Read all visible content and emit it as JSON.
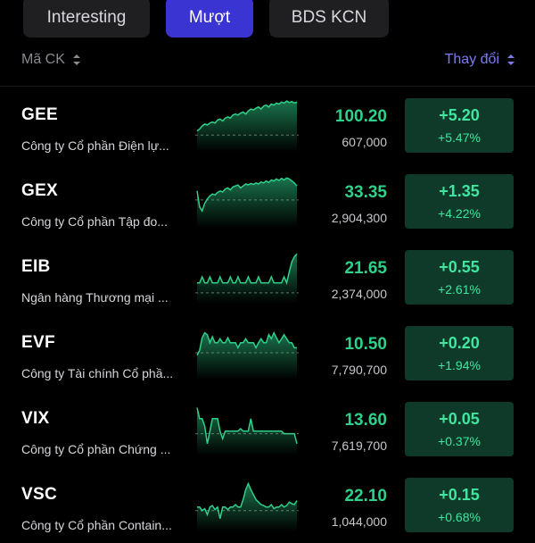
{
  "tabs": [
    {
      "label": "Interesting",
      "active": false
    },
    {
      "label": "Mượt",
      "active": true
    },
    {
      "label": "BDS KCN",
      "active": false
    }
  ],
  "header": {
    "left_label": "Mã CK",
    "right_label": "Thay đổi",
    "sort_icon": "sort-updown-icon"
  },
  "colors": {
    "background": "#000000",
    "active_tab": "#3a34d2",
    "gain_text": "#2fd08a",
    "gain_box": "#0f3a2a",
    "accent_link": "#7c7cf0"
  },
  "stocks": [
    {
      "ticker": "GEE",
      "name": "Công ty Cổ phần Điện lự...",
      "price": "100.20",
      "volume": "607,000",
      "change": "+5.20",
      "change_pct": "+5.47%",
      "spark": [
        0.62,
        0.58,
        0.52,
        0.48,
        0.5,
        0.46,
        0.44,
        0.46,
        0.4,
        0.38,
        0.42,
        0.36,
        0.34,
        0.36,
        0.3,
        0.28,
        0.3,
        0.26,
        0.24,
        0.28,
        0.22,
        0.18,
        0.2,
        0.16,
        0.14,
        0.18,
        0.12,
        0.1,
        0.14,
        0.08,
        0.1,
        0.06,
        0.08,
        0.04,
        0.06,
        0.02,
        0.05,
        0.03,
        0.06,
        0.04
      ],
      "ref": 0.7
    },
    {
      "ticker": "GEX",
      "name": "Công ty Cổ phần Tập đo...",
      "price": "33.35",
      "volume": "2,904,300",
      "change": "+1.35",
      "change_pct": "+4.22%",
      "spark": [
        0.3,
        0.62,
        0.7,
        0.55,
        0.46,
        0.4,
        0.36,
        0.38,
        0.33,
        0.3,
        0.32,
        0.26,
        0.24,
        0.28,
        0.22,
        0.2,
        0.18,
        0.24,
        0.2,
        0.16,
        0.18,
        0.15,
        0.17,
        0.14,
        0.16,
        0.12,
        0.14,
        0.1,
        0.13,
        0.08,
        0.1,
        0.06,
        0.09,
        0.05,
        0.08,
        0.04,
        0.06,
        0.1,
        0.14,
        0.2
      ],
      "ref": 0.48
    },
    {
      "ticker": "EIB",
      "name": "Ngân hàng Thương mại ...",
      "price": "21.65",
      "volume": "2,374,000",
      "change": "+0.55",
      "change_pct": "+2.61%",
      "spark": [
        0.62,
        0.62,
        0.5,
        0.62,
        0.62,
        0.5,
        0.62,
        0.62,
        0.62,
        0.5,
        0.62,
        0.62,
        0.62,
        0.5,
        0.62,
        0.62,
        0.5,
        0.62,
        0.62,
        0.62,
        0.5,
        0.62,
        0.62,
        0.62,
        0.5,
        0.62,
        0.62,
        0.62,
        0.62,
        0.5,
        0.62,
        0.62,
        0.62,
        0.62,
        0.5,
        0.62,
        0.4,
        0.2,
        0.1,
        0.04
      ],
      "ref": 0.82
    },
    {
      "ticker": "EVF",
      "name": "Công ty Tài chính Cổ phầ...",
      "price": "10.50",
      "volume": "7,790,700",
      "change": "+0.20",
      "change_pct": "+1.94%",
      "spark": [
        0.55,
        0.45,
        0.2,
        0.1,
        0.14,
        0.3,
        0.18,
        0.3,
        0.3,
        0.22,
        0.3,
        0.3,
        0.2,
        0.3,
        0.3,
        0.3,
        0.4,
        0.3,
        0.3,
        0.22,
        0.3,
        0.3,
        0.3,
        0.4,
        0.3,
        0.22,
        0.3,
        0.3,
        0.14,
        0.22,
        0.1,
        0.2,
        0.3,
        0.22,
        0.14,
        0.22,
        0.3,
        0.3,
        0.4,
        0.4
      ],
      "ref": 0.5
    },
    {
      "ticker": "VIX",
      "name": "Công ty Cổ phần Chứng ...",
      "price": "13.60",
      "volume": "7,619,700",
      "change": "+0.05",
      "change_pct": "+0.37%",
      "spark": [
        0.08,
        0.3,
        0.3,
        0.45,
        0.8,
        0.55,
        0.3,
        0.3,
        0.3,
        0.55,
        0.7,
        0.55,
        0.55,
        0.55,
        0.55,
        0.55,
        0.55,
        0.5,
        0.55,
        0.55,
        0.55,
        0.3,
        0.55,
        0.55,
        0.55,
        0.55,
        0.55,
        0.55,
        0.55,
        0.55,
        0.55,
        0.55,
        0.55,
        0.55,
        0.6,
        0.6,
        0.6,
        0.6,
        0.6,
        0.8
      ],
      "ref": 0.6
    },
    {
      "ticker": "VSC",
      "name": "Công ty Cổ phần Contain...",
      "price": "22.10",
      "volume": "1,044,000",
      "change": "+0.15",
      "change_pct": "+0.68%",
      "spark": [
        0.55,
        0.55,
        0.62,
        0.58,
        0.7,
        0.55,
        0.52,
        0.6,
        0.55,
        0.78,
        0.55,
        0.55,
        0.6,
        0.55,
        0.55,
        0.5,
        0.55,
        0.55,
        0.4,
        0.2,
        0.08,
        0.2,
        0.3,
        0.4,
        0.45,
        0.5,
        0.52,
        0.55,
        0.55,
        0.5,
        0.58,
        0.55,
        0.55,
        0.5,
        0.55,
        0.52,
        0.45,
        0.48,
        0.5,
        0.42
      ],
      "ref": 0.62
    }
  ]
}
